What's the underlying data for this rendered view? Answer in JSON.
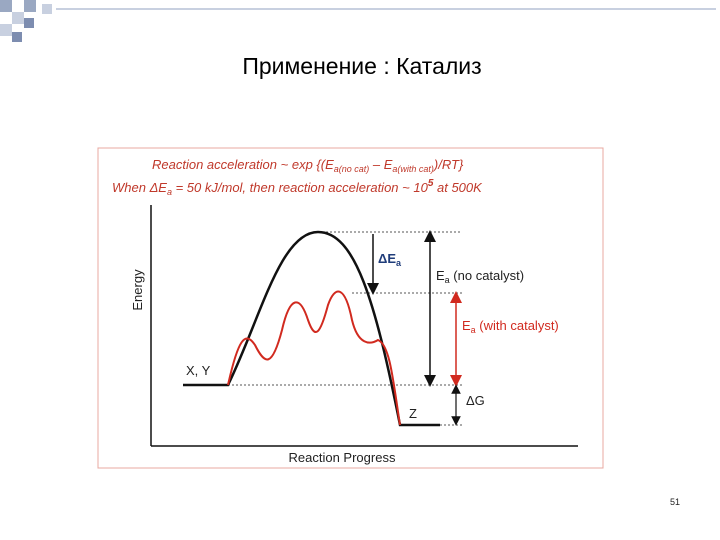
{
  "title": "Применение : Катализ",
  "slide_number": "51",
  "figure": {
    "formula": {
      "lead": "Reaction acceleration  ~ exp {(E",
      "sub1": "a(no cat)",
      "mid": " – E",
      "sub2": "a(with cat)",
      "tail": ")/RT}"
    },
    "condition": {
      "lead": "When ΔE",
      "sub": "a",
      "mid": " = 50 kJ/mol, then reaction acceleration  ~ 10",
      "sup": "5",
      "tail": "  at 500K"
    },
    "y_axis_label": "Energy",
    "x_axis_label": "Reaction Progress",
    "labels": {
      "reactants": "X, Y",
      "product": "Z",
      "delta_ea": {
        "main": "ΔE",
        "sub": "a"
      },
      "ea_no_cat": {
        "main": "E",
        "sub": "a",
        "tail": " (no catalyst)"
      },
      "ea_with_cat": {
        "main": "E",
        "sub": "a",
        "tail": " (with catalyst)"
      },
      "delta_g": "ΔG"
    }
  }
}
